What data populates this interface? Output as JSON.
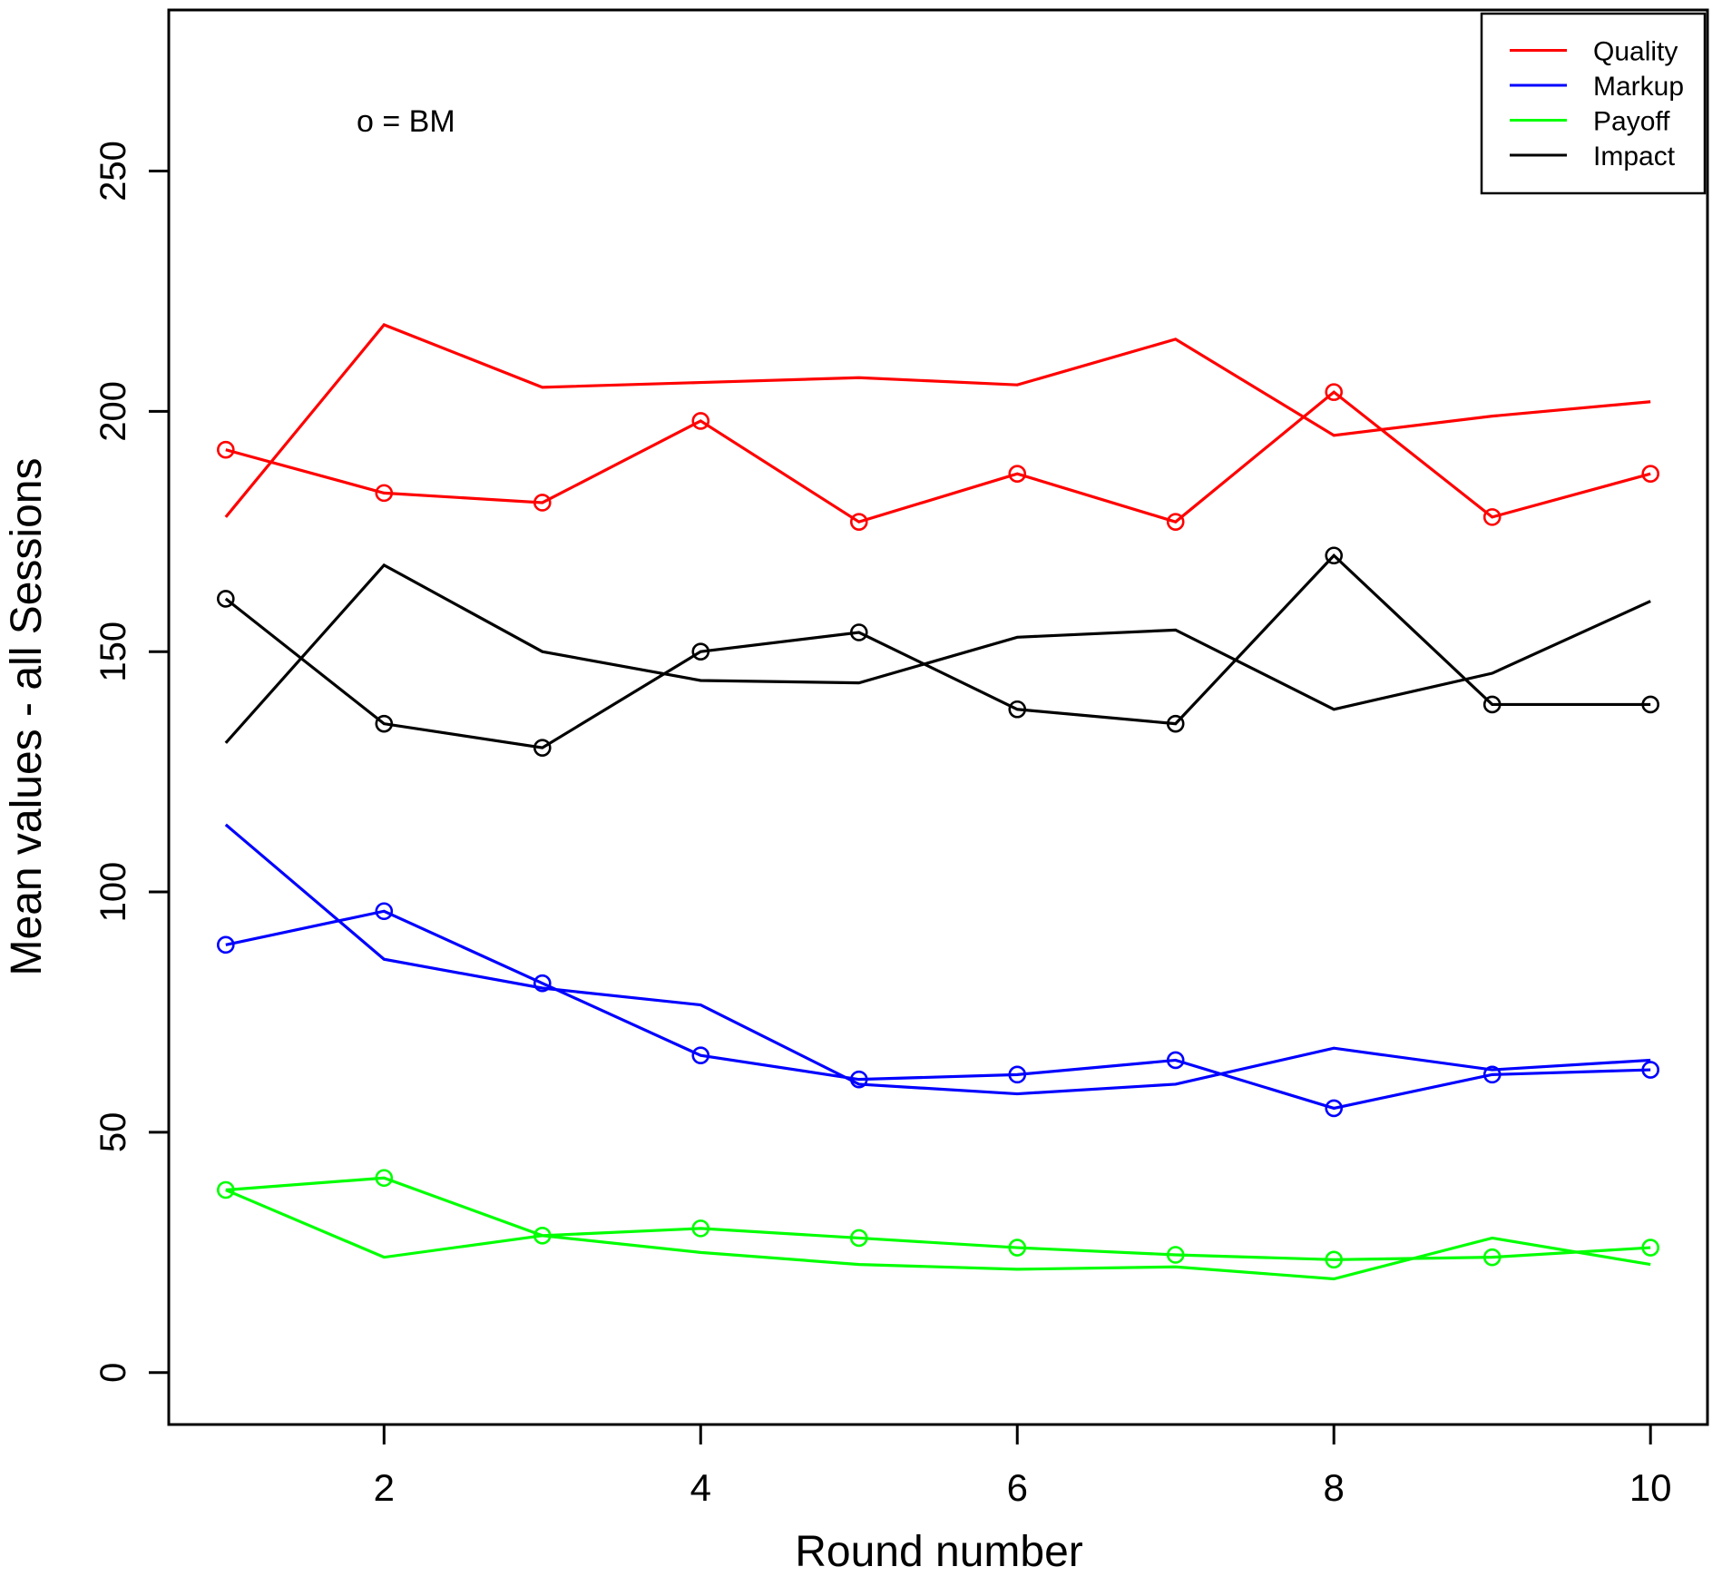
{
  "chart_data": {
    "type": "line",
    "title": "",
    "xlabel": "Round number",
    "ylabel": "Mean values - all Sessions",
    "annotation": "o = BM",
    "marker_meaning": "circle markers denote BM series; unmarked line is the non-BM counterpart of the same measure",
    "x": [
      1,
      2,
      3,
      4,
      5,
      6,
      7,
      8,
      9,
      10
    ],
    "x_ticks": [
      2,
      4,
      6,
      8,
      10
    ],
    "y_ticks": [
      0,
      50,
      100,
      150,
      200,
      250
    ],
    "xlim": [
      0.64,
      10.36
    ],
    "ylim": [
      -10.8,
      283.5
    ],
    "grid": false,
    "legend_position": "top-right",
    "series": [
      {
        "name": "Quality",
        "color": "#ff0000",
        "values_bm": [
          192,
          183,
          181,
          198,
          177,
          187,
          177,
          204,
          178,
          187
        ],
        "values_other": [
          178,
          218,
          205,
          206,
          207,
          205.5,
          215,
          195,
          199,
          202
        ]
      },
      {
        "name": "Markup",
        "color": "#0000ff",
        "values_bm": [
          89,
          96,
          81,
          66,
          61,
          62,
          65,
          55,
          62,
          63
        ],
        "values_other": [
          114,
          86,
          80,
          76.5,
          60,
          58,
          60,
          67.5,
          63,
          65
        ]
      },
      {
        "name": "Payoff",
        "color": "#00ff00",
        "values_bm": [
          38,
          40.5,
          28.5,
          30,
          28,
          26,
          24.5,
          23.5,
          24,
          26
        ],
        "values_other": [
          38,
          24,
          28.5,
          25,
          22.5,
          21.5,
          22,
          19.5,
          28,
          22.5
        ]
      },
      {
        "name": "Impact",
        "color": "#000000",
        "values_bm": [
          161,
          135,
          130,
          150,
          154,
          138,
          135,
          170,
          139,
          139
        ],
        "values_other": [
          131,
          168,
          150,
          144,
          143.5,
          153,
          154.5,
          138,
          145.5,
          160.5
        ]
      }
    ]
  }
}
